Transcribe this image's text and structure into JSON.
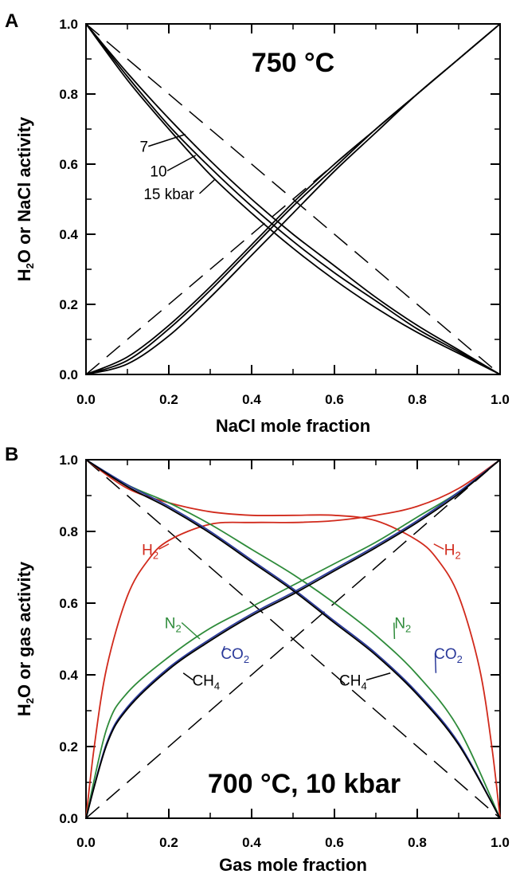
{
  "chart_data": [
    {
      "panel": "A",
      "type": "line",
      "title": "750 °C",
      "xlabel": "NaCl mole fraction",
      "ylabel": {
        "pre": "H",
        "sub": "2",
        "post": "O or NaCl activity"
      },
      "xlim": [
        0,
        1
      ],
      "ylim": [
        0,
        1
      ],
      "xticks": [
        "0.0",
        "0.2",
        "0.4",
        "0.6",
        "0.8",
        "1.0"
      ],
      "yticks": [
        "0.0",
        "0.2",
        "0.4",
        "0.6",
        "0.8",
        "1.0"
      ],
      "series": [
        {
          "group": "H2O",
          "pressure": "7",
          "color": "#000000",
          "x": [
            0,
            0.1,
            0.2,
            0.3,
            0.4,
            0.5,
            0.6,
            0.7,
            0.8,
            0.9,
            1.0
          ],
          "y": [
            1.0,
            0.86,
            0.73,
            0.61,
            0.5,
            0.4,
            0.31,
            0.22,
            0.14,
            0.07,
            0.0
          ]
        },
        {
          "group": "H2O",
          "pressure": "10",
          "color": "#000000",
          "x": [
            0,
            0.1,
            0.2,
            0.3,
            0.4,
            0.5,
            0.6,
            0.7,
            0.8,
            0.9,
            1.0
          ],
          "y": [
            1.0,
            0.85,
            0.71,
            0.59,
            0.48,
            0.38,
            0.29,
            0.21,
            0.13,
            0.065,
            0.0
          ]
        },
        {
          "group": "H2O",
          "pressure": "15",
          "color": "#000000",
          "x": [
            0,
            0.1,
            0.2,
            0.3,
            0.4,
            0.5,
            0.6,
            0.7,
            0.8,
            0.9,
            1.0
          ],
          "y": [
            1.0,
            0.84,
            0.7,
            0.57,
            0.46,
            0.36,
            0.27,
            0.19,
            0.12,
            0.06,
            0.0
          ]
        },
        {
          "group": "NaCl",
          "pressure": "7",
          "color": "#000000",
          "x": [
            0,
            0.1,
            0.2,
            0.3,
            0.4,
            0.5,
            0.6,
            0.7,
            0.8,
            0.9,
            1.0
          ],
          "y": [
            0.0,
            0.05,
            0.14,
            0.25,
            0.37,
            0.49,
            0.6,
            0.7,
            0.8,
            0.9,
            1.0
          ]
        },
        {
          "group": "NaCl",
          "pressure": "10",
          "color": "#000000",
          "x": [
            0,
            0.1,
            0.2,
            0.3,
            0.4,
            0.5,
            0.6,
            0.7,
            0.8,
            0.9,
            1.0
          ],
          "y": [
            0.0,
            0.04,
            0.13,
            0.24,
            0.36,
            0.48,
            0.59,
            0.7,
            0.8,
            0.9,
            1.0
          ]
        },
        {
          "group": "NaCl",
          "pressure": "15",
          "color": "#000000",
          "x": [
            0,
            0.1,
            0.2,
            0.3,
            0.4,
            0.5,
            0.6,
            0.7,
            0.8,
            0.9,
            1.0
          ],
          "y": [
            0.0,
            0.03,
            0.11,
            0.22,
            0.34,
            0.46,
            0.58,
            0.69,
            0.8,
            0.9,
            1.0
          ]
        }
      ],
      "ideal_lines": [
        {
          "x": [
            0,
            1
          ],
          "y": [
            1,
            0
          ]
        },
        {
          "x": [
            0,
            1
          ],
          "y": [
            0,
            1
          ]
        }
      ],
      "labels": [
        {
          "text": "7",
          "x": 0.14,
          "y": 0.635,
          "to": [
            0.24,
            0.685
          ]
        },
        {
          "text": "10",
          "x": 0.175,
          "y": 0.565,
          "to": [
            0.265,
            0.625
          ]
        },
        {
          "text": "15 kbar",
          "x": 0.2,
          "y": 0.5,
          "to": [
            0.31,
            0.555
          ]
        }
      ]
    },
    {
      "panel": "B",
      "type": "line",
      "title": "700 °C, 10 kbar",
      "xlabel": "Gas mole fraction",
      "ylabel": {
        "pre": "H",
        "sub": "2",
        "post": "O or gas activity"
      },
      "xlim": [
        0,
        1
      ],
      "ylim": [
        0,
        1
      ],
      "xticks": [
        "0.0",
        "0.2",
        "0.4",
        "0.6",
        "0.8",
        "1.0"
      ],
      "yticks": [
        "0.0",
        "0.2",
        "0.4",
        "0.6",
        "0.8",
        "1.0"
      ],
      "series": [
        {
          "gas": "H2",
          "kind": "H2O",
          "color": "#d12a1c",
          "x": [
            0,
            0.1,
            0.2,
            0.3,
            0.4,
            0.5,
            0.6,
            0.7,
            0.8,
            0.85,
            0.9,
            0.95,
            0.98,
            1.0
          ],
          "y": [
            1.0,
            0.92,
            0.88,
            0.855,
            0.845,
            0.845,
            0.845,
            0.83,
            0.775,
            0.72,
            0.62,
            0.42,
            0.2,
            0.0
          ]
        },
        {
          "gas": "H2",
          "kind": "gas",
          "color": "#d12a1c",
          "x": [
            0,
            0.02,
            0.05,
            0.1,
            0.15,
            0.2,
            0.3,
            0.4,
            0.5,
            0.6,
            0.7,
            0.8,
            0.9,
            1.0
          ],
          "y": [
            0.0,
            0.2,
            0.42,
            0.62,
            0.72,
            0.775,
            0.82,
            0.825,
            0.825,
            0.83,
            0.845,
            0.87,
            0.92,
            1.0
          ]
        },
        {
          "gas": "N2",
          "kind": "H2O",
          "color": "#2e8b3a",
          "x": [
            0,
            0.1,
            0.2,
            0.3,
            0.4,
            0.5,
            0.6,
            0.7,
            0.8,
            0.9,
            1.0
          ],
          "y": [
            1.0,
            0.93,
            0.88,
            0.82,
            0.75,
            0.68,
            0.6,
            0.51,
            0.4,
            0.25,
            0.0
          ]
        },
        {
          "gas": "N2",
          "kind": "gas",
          "color": "#2e8b3a",
          "x": [
            0,
            0.05,
            0.1,
            0.2,
            0.3,
            0.4,
            0.5,
            0.6,
            0.7,
            0.8,
            0.9,
            1.0
          ],
          "y": [
            0.0,
            0.25,
            0.35,
            0.45,
            0.53,
            0.59,
            0.65,
            0.71,
            0.77,
            0.84,
            0.91,
            1.0
          ]
        },
        {
          "gas": "CO2",
          "kind": "H2O",
          "color": "#2b3a9a",
          "x": [
            0,
            0.1,
            0.2,
            0.3,
            0.4,
            0.5,
            0.6,
            0.7,
            0.8,
            0.9,
            1.0
          ],
          "y": [
            1.0,
            0.93,
            0.87,
            0.8,
            0.72,
            0.64,
            0.55,
            0.46,
            0.35,
            0.21,
            0.0
          ]
        },
        {
          "gas": "CO2",
          "kind": "gas",
          "color": "#2b3a9a",
          "x": [
            0,
            0.05,
            0.1,
            0.2,
            0.3,
            0.4,
            0.5,
            0.6,
            0.7,
            0.8,
            0.9,
            1.0
          ],
          "y": [
            0.0,
            0.21,
            0.31,
            0.42,
            0.5,
            0.57,
            0.63,
            0.695,
            0.76,
            0.83,
            0.91,
            1.0
          ]
        },
        {
          "gas": "CH4",
          "kind": "H2O",
          "color": "#000000",
          "x": [
            0,
            0.1,
            0.2,
            0.3,
            0.4,
            0.5,
            0.6,
            0.7,
            0.8,
            0.9,
            1.0
          ],
          "y": [
            1.0,
            0.925,
            0.865,
            0.795,
            0.715,
            0.635,
            0.545,
            0.455,
            0.345,
            0.205,
            0.0
          ]
        },
        {
          "gas": "CH4",
          "kind": "gas",
          "color": "#000000",
          "x": [
            0,
            0.05,
            0.1,
            0.2,
            0.3,
            0.4,
            0.5,
            0.6,
            0.7,
            0.8,
            0.9,
            1.0
          ],
          "y": [
            0.0,
            0.205,
            0.305,
            0.415,
            0.495,
            0.565,
            0.625,
            0.69,
            0.755,
            0.825,
            0.905,
            1.0
          ]
        }
      ],
      "ideal_lines": [
        {
          "x": [
            0,
            1
          ],
          "y": [
            1,
            0
          ]
        },
        {
          "x": [
            0,
            1
          ],
          "y": [
            0,
            1
          ]
        }
      ],
      "labels": [
        {
          "sym": "H",
          "sub": "2",
          "color": "#d12a1c",
          "x": 0.155,
          "y": 0.735,
          "to": [
            0.2,
            0.765
          ]
        },
        {
          "sym": "H",
          "sub": "2",
          "color": "#d12a1c",
          "x": 0.885,
          "y": 0.735,
          "to": [
            0.84,
            0.765
          ]
        },
        {
          "sym": "N",
          "sub": "2",
          "color": "#2e8b3a",
          "x": 0.21,
          "y": 0.53,
          "to": [
            0.275,
            0.5
          ]
        },
        {
          "sym": "N",
          "sub": "2",
          "color": "#2e8b3a",
          "x": 0.765,
          "y": 0.53,
          "to": [
            0.745,
            0.5
          ]
        },
        {
          "sym": "CO",
          "sub": "2",
          "color": "#2b3a9a",
          "x": 0.36,
          "y": 0.445,
          "to": [
            0.335,
            0.48
          ]
        },
        {
          "sym": "CO",
          "sub": "2",
          "color": "#2b3a9a",
          "x": 0.875,
          "y": 0.445,
          "to": [
            0.845,
            0.405
          ]
        },
        {
          "sym": "CH",
          "sub": "4",
          "color": "#000000",
          "x": 0.29,
          "y": 0.37,
          "to": [
            0.235,
            0.405
          ]
        },
        {
          "sym": "CH",
          "sub": "4",
          "color": "#000000",
          "x": 0.645,
          "y": 0.37,
          "to": [
            0.735,
            0.405
          ]
        }
      ]
    }
  ]
}
